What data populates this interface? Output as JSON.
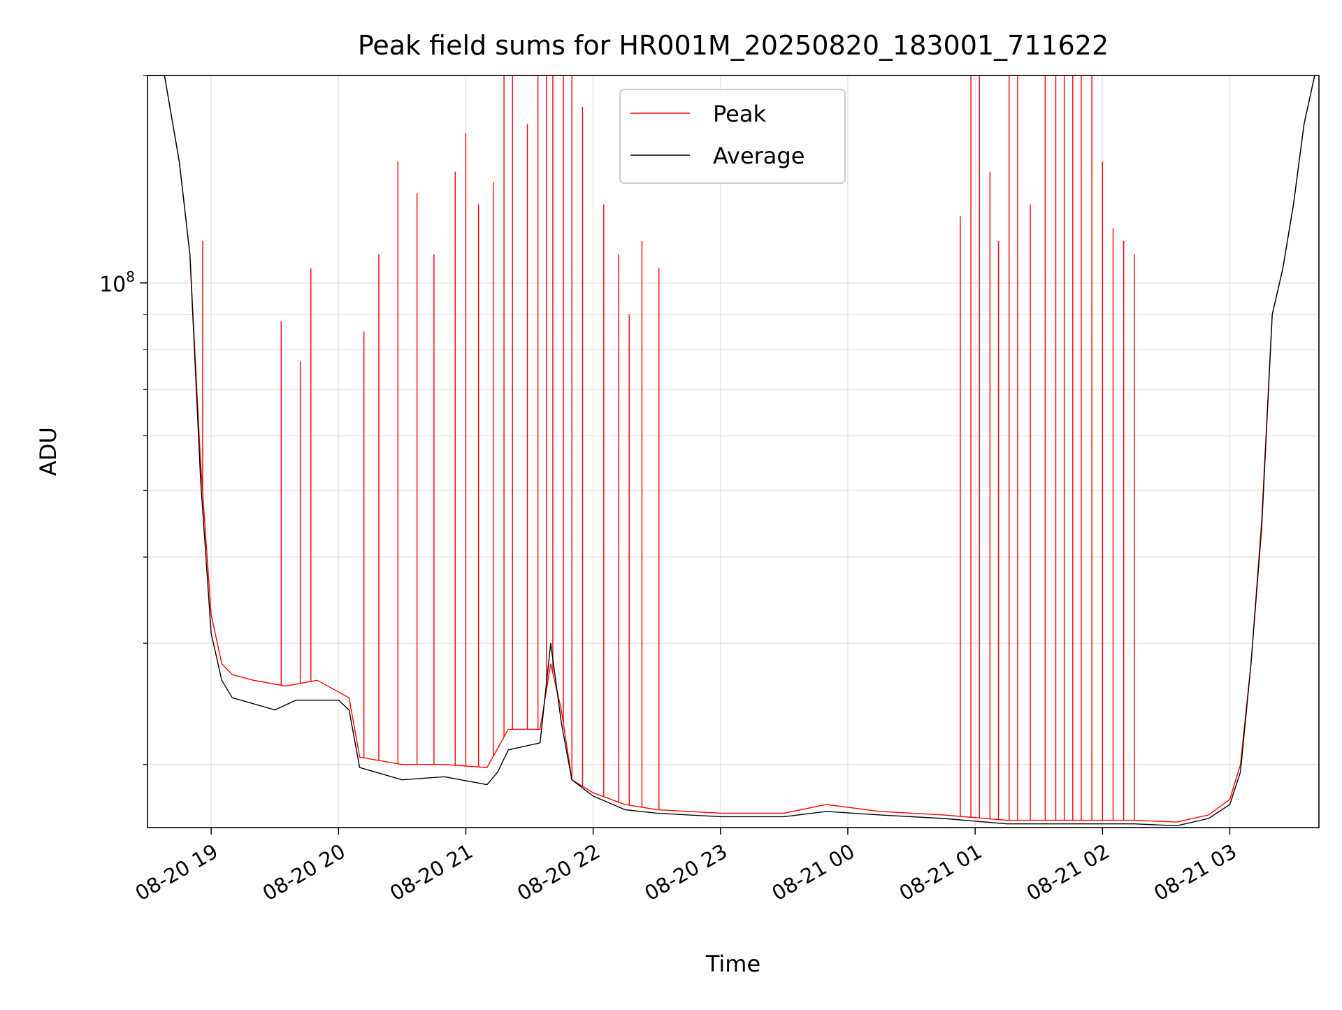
{
  "chart_data": {
    "type": "line",
    "title": "Peak field sums for HR001M_20250820_183001_711622",
    "xlabel": "Time",
    "ylabel": "ADU",
    "yscale": "log",
    "grid": true,
    "legend_position": "top-center",
    "x_ticks": [
      "08-20 19",
      "08-20 20",
      "08-20 21",
      "08-20 22",
      "08-20 23",
      "08-21 00",
      "08-21 01",
      "08-21 02",
      "08-21 03"
    ],
    "x_range": [
      "2025-08-20 18:30",
      "2025-08-21 03:42"
    ],
    "ylim": [
      16200000,
      200000000
    ],
    "y_ticks_labeled": [
      {
        "value": 100000000,
        "base": "10",
        "exp": "8"
      }
    ],
    "y_minor_ticks": [
      20000000,
      30000000,
      40000000,
      50000000,
      60000000,
      70000000,
      80000000,
      90000000,
      200000000
    ],
    "series": [
      {
        "name": "Peak",
        "color": "#ff0000",
        "points": [
          [
            "2025-08-20 18:30",
            200000000
          ],
          [
            "2025-08-20 18:38",
            200000000
          ],
          [
            "2025-08-20 18:45",
            150000000
          ],
          [
            "2025-08-20 18:50",
            110000000
          ],
          [
            "2025-08-20 18:55",
            55000000
          ],
          [
            "2025-08-20 19:00",
            33000000
          ],
          [
            "2025-08-20 19:05",
            28000000
          ],
          [
            "2025-08-20 19:10",
            27000000
          ],
          [
            "2025-08-20 19:20",
            26500000
          ],
          [
            "2025-08-20 19:35",
            26000000
          ],
          [
            "2025-08-20 19:50",
            26500000
          ],
          [
            "2025-08-20 20:05",
            25000000
          ],
          [
            "2025-08-20 20:10",
            20500000
          ],
          [
            "2025-08-20 20:30",
            20000000
          ],
          [
            "2025-08-20 20:50",
            20000000
          ],
          [
            "2025-08-20 21:10",
            19800000
          ],
          [
            "2025-08-20 21:20",
            22500000
          ],
          [
            "2025-08-20 21:35",
            22500000
          ],
          [
            "2025-08-20 21:40",
            28000000
          ],
          [
            "2025-08-20 21:45",
            24000000
          ],
          [
            "2025-08-20 21:50",
            19000000
          ],
          [
            "2025-08-20 22:00",
            18200000
          ],
          [
            "2025-08-20 22:15",
            17500000
          ],
          [
            "2025-08-20 22:30",
            17200000
          ],
          [
            "2025-08-20 23:00",
            17000000
          ],
          [
            "2025-08-20 23:30",
            17000000
          ],
          [
            "2025-08-20 23:50",
            17500000
          ],
          [
            "2025-08-21 00:15",
            17100000
          ],
          [
            "2025-08-21 00:45",
            16900000
          ],
          [
            "2025-08-21 01:15",
            16600000
          ],
          [
            "2025-08-21 01:45",
            16600000
          ],
          [
            "2025-08-21 02:15",
            16600000
          ],
          [
            "2025-08-21 02:35",
            16500000
          ],
          [
            "2025-08-21 02:50",
            16900000
          ],
          [
            "2025-08-21 03:00",
            17800000
          ],
          [
            "2025-08-21 03:05",
            20000000
          ],
          [
            "2025-08-21 03:10",
            28000000
          ],
          [
            "2025-08-21 03:15",
            45000000
          ],
          [
            "2025-08-21 03:20",
            90000000
          ],
          [
            "2025-08-21 03:25",
            105000000
          ],
          [
            "2025-08-21 03:30",
            130000000
          ],
          [
            "2025-08-21 03:35",
            170000000
          ],
          [
            "2025-08-21 03:40",
            200000000
          ]
        ],
        "spikes": [
          [
            "2025-08-20 18:56",
            115000000
          ],
          [
            "2025-08-20 19:33",
            88000000
          ],
          [
            "2025-08-20 19:42",
            77000000
          ],
          [
            "2025-08-20 19:47",
            105000000
          ],
          [
            "2025-08-20 20:12",
            85000000
          ],
          [
            "2025-08-20 20:19",
            110000000
          ],
          [
            "2025-08-20 20:28",
            150000000
          ],
          [
            "2025-08-20 20:37",
            135000000
          ],
          [
            "2025-08-20 20:45",
            110000000
          ],
          [
            "2025-08-20 20:55",
            145000000
          ],
          [
            "2025-08-20 21:00",
            165000000
          ],
          [
            "2025-08-20 21:06",
            130000000
          ],
          [
            "2025-08-20 21:13",
            140000000
          ],
          [
            "2025-08-20 21:18",
            200000000
          ],
          [
            "2025-08-20 21:22",
            200000000
          ],
          [
            "2025-08-20 21:29",
            170000000
          ],
          [
            "2025-08-20 21:34",
            200000000
          ],
          [
            "2025-08-20 21:38",
            200000000
          ],
          [
            "2025-08-20 21:41",
            200000000
          ],
          [
            "2025-08-20 21:46",
            200000000
          ],
          [
            "2025-08-20 21:50",
            200000000
          ],
          [
            "2025-08-20 21:55",
            180000000
          ],
          [
            "2025-08-20 22:05",
            130000000
          ],
          [
            "2025-08-20 22:12",
            110000000
          ],
          [
            "2025-08-20 22:17",
            90000000
          ],
          [
            "2025-08-20 22:23",
            115000000
          ],
          [
            "2025-08-20 22:31",
            105000000
          ],
          [
            "2025-08-21 00:53",
            125000000
          ],
          [
            "2025-08-21 00:58",
            200000000
          ],
          [
            "2025-08-21 01:02",
            200000000
          ],
          [
            "2025-08-21 01:07",
            145000000
          ],
          [
            "2025-08-21 01:11",
            115000000
          ],
          [
            "2025-08-21 01:16",
            200000000
          ],
          [
            "2025-08-21 01:20",
            200000000
          ],
          [
            "2025-08-21 01:26",
            130000000
          ],
          [
            "2025-08-21 01:33",
            200000000
          ],
          [
            "2025-08-21 01:38",
            200000000
          ],
          [
            "2025-08-21 01:42",
            200000000
          ],
          [
            "2025-08-21 01:46",
            200000000
          ],
          [
            "2025-08-21 01:50",
            200000000
          ],
          [
            "2025-08-21 01:55",
            200000000
          ],
          [
            "2025-08-21 02:00",
            150000000
          ],
          [
            "2025-08-21 02:05",
            120000000
          ],
          [
            "2025-08-21 02:10",
            115000000
          ],
          [
            "2025-08-21 02:15",
            110000000
          ]
        ]
      },
      {
        "name": "Average",
        "color": "#000000",
        "points": [
          [
            "2025-08-20 18:30",
            200000000
          ],
          [
            "2025-08-20 18:38",
            200000000
          ],
          [
            "2025-08-20 18:45",
            150000000
          ],
          [
            "2025-08-20 18:50",
            110000000
          ],
          [
            "2025-08-20 18:55",
            52000000
          ],
          [
            "2025-08-20 19:00",
            31000000
          ],
          [
            "2025-08-20 19:05",
            26500000
          ],
          [
            "2025-08-20 19:10",
            25000000
          ],
          [
            "2025-08-20 19:20",
            24500000
          ],
          [
            "2025-08-20 19:30",
            24000000
          ],
          [
            "2025-08-20 19:40",
            24800000
          ],
          [
            "2025-08-20 20:00",
            24800000
          ],
          [
            "2025-08-20 20:05",
            24000000
          ],
          [
            "2025-08-20 20:10",
            19800000
          ],
          [
            "2025-08-20 20:30",
            19000000
          ],
          [
            "2025-08-20 20:50",
            19200000
          ],
          [
            "2025-08-20 21:10",
            18700000
          ],
          [
            "2025-08-20 21:15",
            19500000
          ],
          [
            "2025-08-20 21:20",
            21000000
          ],
          [
            "2025-08-20 21:35",
            21500000
          ],
          [
            "2025-08-20 21:40",
            30000000
          ],
          [
            "2025-08-20 21:45",
            23000000
          ],
          [
            "2025-08-20 21:50",
            19000000
          ],
          [
            "2025-08-20 22:00",
            18000000
          ],
          [
            "2025-08-20 22:15",
            17200000
          ],
          [
            "2025-08-20 22:30",
            17000000
          ],
          [
            "2025-08-20 23:00",
            16800000
          ],
          [
            "2025-08-20 23:30",
            16800000
          ],
          [
            "2025-08-20 23:50",
            17100000
          ],
          [
            "2025-08-21 00:15",
            16900000
          ],
          [
            "2025-08-21 00:45",
            16700000
          ],
          [
            "2025-08-21 01:15",
            16400000
          ],
          [
            "2025-08-21 01:45",
            16400000
          ],
          [
            "2025-08-21 02:15",
            16400000
          ],
          [
            "2025-08-21 02:35",
            16300000
          ],
          [
            "2025-08-21 02:50",
            16700000
          ],
          [
            "2025-08-21 03:00",
            17500000
          ],
          [
            "2025-08-21 03:05",
            19500000
          ],
          [
            "2025-08-21 03:10",
            28000000
          ],
          [
            "2025-08-21 03:15",
            44000000
          ],
          [
            "2025-08-21 03:20",
            90000000
          ],
          [
            "2025-08-21 03:25",
            105000000
          ],
          [
            "2025-08-21 03:30",
            130000000
          ],
          [
            "2025-08-21 03:35",
            170000000
          ],
          [
            "2025-08-21 03:40",
            200000000
          ]
        ]
      }
    ]
  }
}
